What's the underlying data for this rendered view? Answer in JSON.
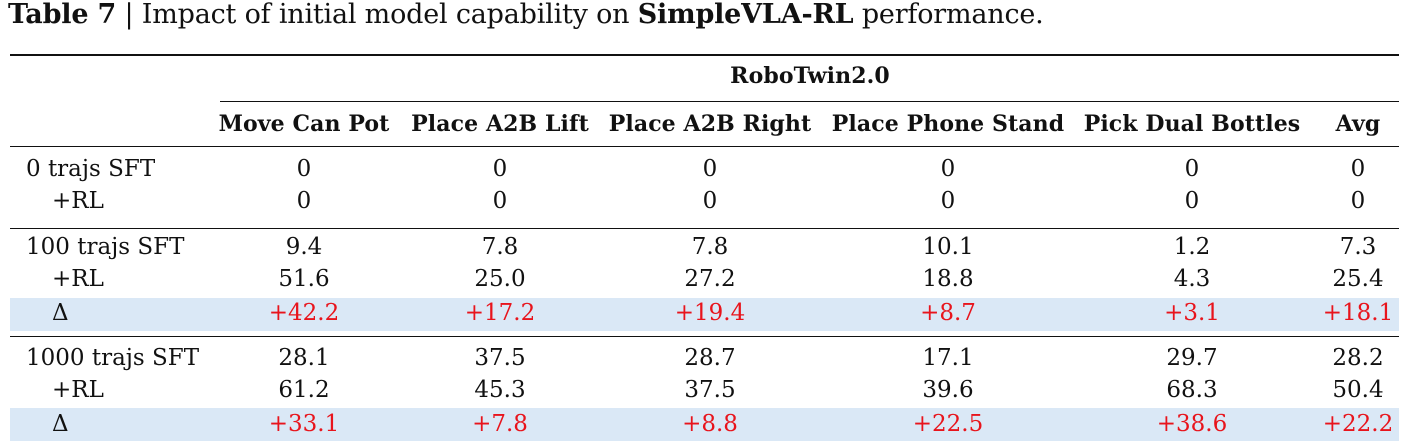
{
  "caption": {
    "label": "Table 7",
    "separator": " | ",
    "text_before": "Impact of initial model capability on ",
    "text_bold": "SimpleVLA-RL",
    "text_after": " performance."
  },
  "group_header": "RoboTwin2.0",
  "columns": [
    "Move Can Pot",
    "Place A2B Lift",
    "Place A2B Right",
    "Place Phone Stand",
    "Pick Dual Bottles",
    "Avg"
  ],
  "groups": [
    {
      "rows": [
        {
          "label": "0 trajs SFT",
          "values": [
            "0",
            "0",
            "0",
            "0",
            "0",
            "0"
          ],
          "delta": false
        },
        {
          "label": "+RL",
          "values": [
            "0",
            "0",
            "0",
            "0",
            "0",
            "0"
          ],
          "delta": false
        }
      ]
    },
    {
      "rows": [
        {
          "label": "100 trajs SFT",
          "values": [
            "9.4",
            "7.8",
            "7.8",
            "10.1",
            "1.2",
            "7.3"
          ],
          "delta": false
        },
        {
          "label": "+RL",
          "values": [
            "51.6",
            "25.0",
            "27.2",
            "18.8",
            "4.3",
            "25.4"
          ],
          "delta": false
        },
        {
          "label": "Δ",
          "values": [
            "+42.2",
            "+17.2",
            "+19.4",
            "+8.7",
            "+3.1",
            "+18.1"
          ],
          "delta": true
        }
      ]
    },
    {
      "rows": [
        {
          "label": "1000 trajs SFT",
          "values": [
            "28.1",
            "37.5",
            "28.7",
            "17.1",
            "29.7",
            "28.2"
          ],
          "delta": false
        },
        {
          "label": "+RL",
          "values": [
            "61.2",
            "45.3",
            "37.5",
            "39.6",
            "68.3",
            "50.4"
          ],
          "delta": false
        },
        {
          "label": "Δ",
          "values": [
            "+33.1",
            "+7.8",
            "+8.8",
            "+22.5",
            "+38.6",
            "+22.2"
          ],
          "delta": true
        }
      ]
    }
  ],
  "colors": {
    "delta_text": "#e8141c",
    "delta_row_bg": "#dae8f6",
    "rules": "#111111"
  }
}
